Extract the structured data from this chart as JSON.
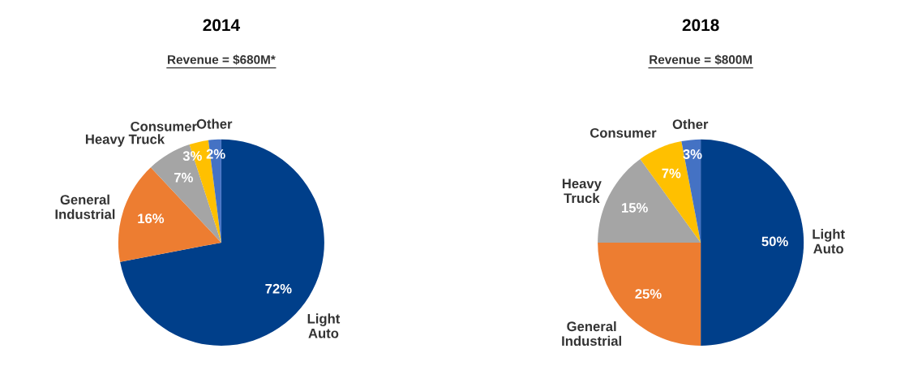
{
  "chart_data": [
    {
      "type": "pie",
      "title": "2014",
      "subtitle": "Revenue = $680M*",
      "categories": [
        "Light\nAuto",
        "General\nIndustrial",
        "Heavy Truck",
        "Consumer",
        "Other"
      ],
      "values": [
        72,
        16,
        7,
        3,
        2
      ],
      "value_labels": [
        "72%",
        "16%",
        "7%",
        "3%",
        "2%"
      ],
      "colors": [
        "#003f8a",
        "#ed7d31",
        "#a5a5a5",
        "#ffc000",
        "#4472c4"
      ]
    },
    {
      "type": "pie",
      "title": "2018",
      "subtitle": "Revenue = $800M",
      "categories": [
        "Light\nAuto",
        "General\nIndustrial",
        "Heavy\nTruck",
        "Consumer",
        "Other"
      ],
      "values": [
        50,
        25,
        15,
        7,
        3
      ],
      "value_labels": [
        "50%",
        "25%",
        "15%",
        "7%",
        "3%"
      ],
      "colors": [
        "#003f8a",
        "#ed7d31",
        "#a5a5a5",
        "#ffc000",
        "#4472c4"
      ]
    }
  ]
}
